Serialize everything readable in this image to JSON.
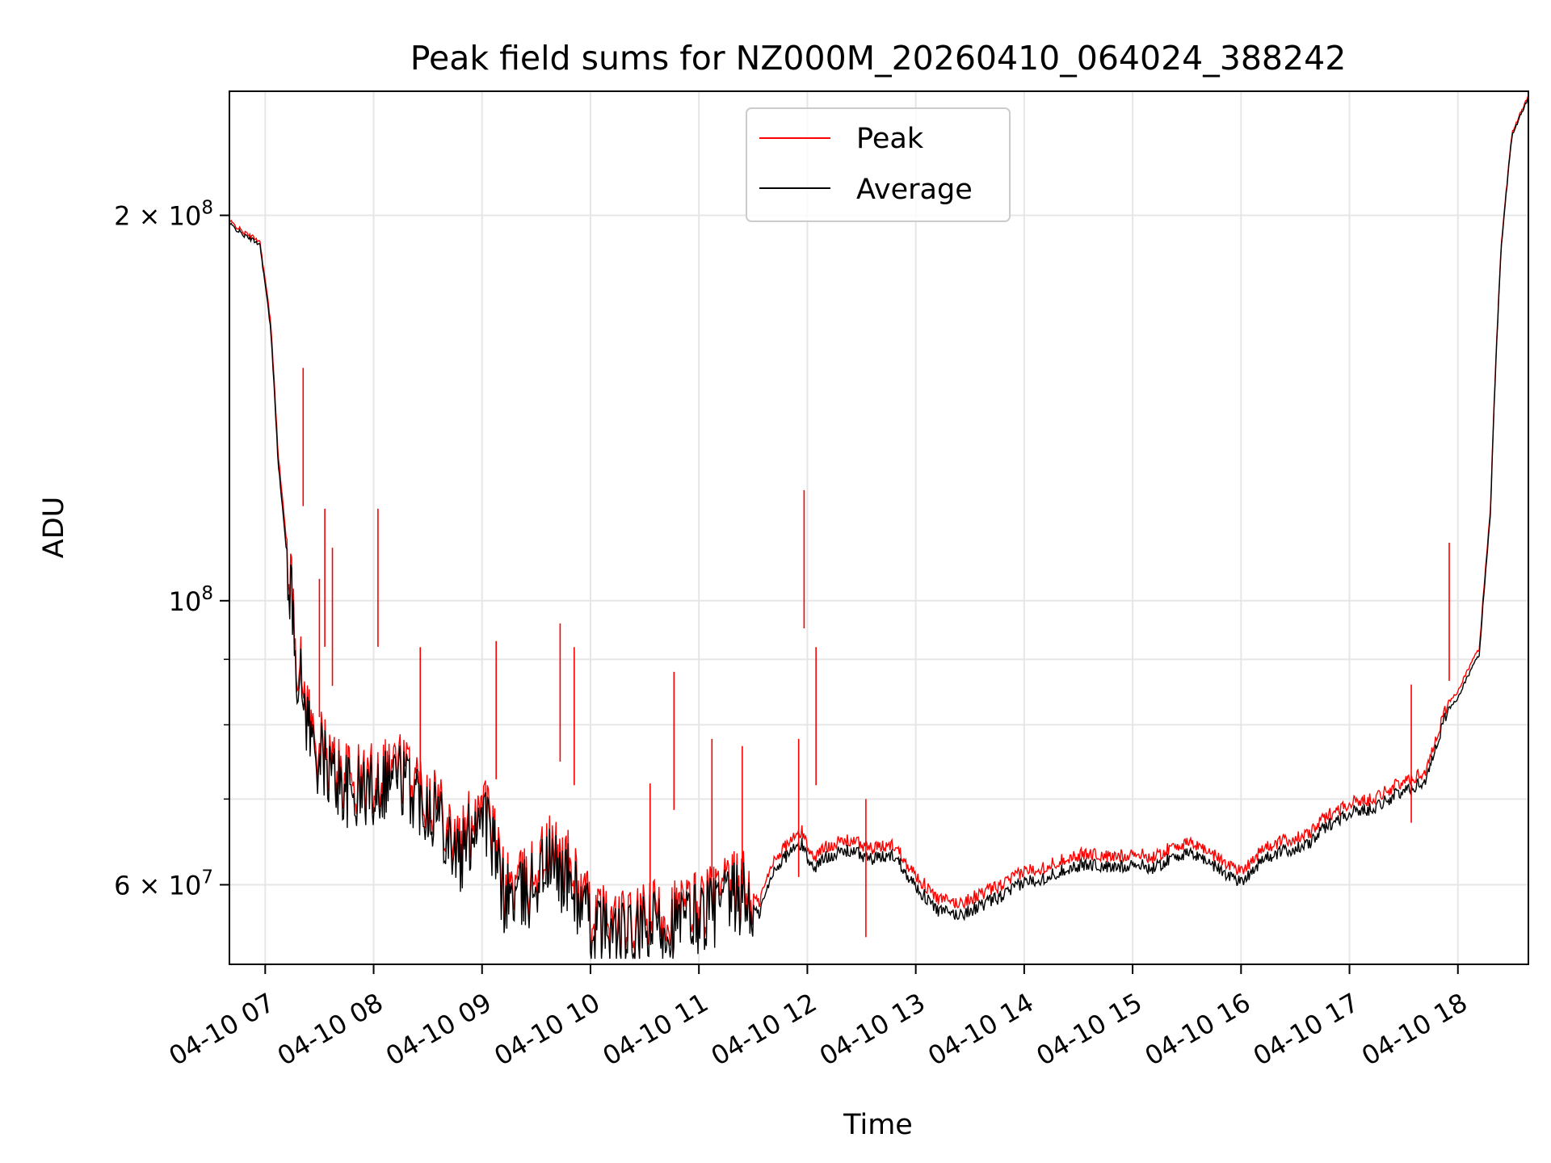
{
  "chart_data": {
    "type": "line",
    "title": "Peak field sums for NZ000M_20260410_064024_388242",
    "xlabel": "Time",
    "ylabel": "ADU",
    "yscale": "log",
    "ylim": [
      52000000,
      250000000
    ],
    "xlim_hours": [
      6.67,
      18.65
    ],
    "grid": true,
    "legend_position": "top-center",
    "x_ticks": [
      {
        "hour": 7,
        "label": "04-10 07"
      },
      {
        "hour": 8,
        "label": "04-10 08"
      },
      {
        "hour": 9,
        "label": "04-10 09"
      },
      {
        "hour": 10,
        "label": "04-10 10"
      },
      {
        "hour": 11,
        "label": "04-10 11"
      },
      {
        "hour": 12,
        "label": "04-10 12"
      },
      {
        "hour": 13,
        "label": "04-10 13"
      },
      {
        "hour": 14,
        "label": "04-10 14"
      },
      {
        "hour": 15,
        "label": "04-10 15"
      },
      {
        "hour": 16,
        "label": "04-10 16"
      },
      {
        "hour": 17,
        "label": "04-10 17"
      },
      {
        "hour": 18,
        "label": "04-10 18"
      }
    ],
    "y_major_ticks": [
      {
        "value": 60000000,
        "mantissa": "6",
        "label": "6 × 10^7"
      },
      {
        "value": 100000000,
        "mantissa": "",
        "label": "10^8"
      },
      {
        "value": 200000000,
        "mantissa": "2",
        "label": "2 × 10^8"
      }
    ],
    "y_minor_ticks": [
      70000000,
      80000000,
      90000000
    ],
    "series": [
      {
        "name": "Peak",
        "color": "#ff0000",
        "x_hours": [
          6.67,
          6.8,
          6.95,
          7.05,
          7.12,
          7.2,
          7.3,
          7.45,
          7.6,
          7.8,
          8.0,
          8.2,
          8.4,
          8.6,
          8.8,
          9.0,
          9.2,
          9.4,
          9.6,
          9.8,
          10.0,
          10.2,
          10.4,
          10.6,
          10.8,
          11.0,
          11.2,
          11.4,
          11.55,
          11.7,
          11.85,
          11.95,
          12.05,
          12.2,
          12.4,
          12.6,
          12.8,
          13.0,
          13.2,
          13.4,
          13.6,
          13.8,
          14.0,
          14.2,
          14.4,
          14.6,
          14.8,
          15.0,
          15.2,
          15.4,
          15.6,
          15.85,
          16.0,
          16.2,
          16.4,
          16.6,
          16.8,
          17.0,
          17.2,
          17.4,
          17.55,
          17.7,
          17.9,
          18.0,
          18.1,
          18.2,
          18.3,
          18.4,
          18.5,
          18.65
        ],
        "values": [
          198000000,
          194000000,
          191000000,
          165000000,
          130000000,
          110000000,
          90000000,
          78000000,
          75000000,
          72000000,
          73000000,
          75000000,
          72000000,
          70000000,
          64000000,
          71000000,
          60000000,
          60000000,
          64000000,
          62000000,
          57000000,
          56000000,
          55500000,
          57000000,
          57000000,
          58000000,
          59000000,
          60000000,
          58000000,
          63000000,
          65000000,
          66000000,
          63000000,
          64500000,
          65000000,
          64000000,
          64500000,
          61000000,
          58500000,
          58000000,
          59000000,
          60000000,
          61500000,
          62000000,
          63000000,
          63500000,
          63000000,
          63500000,
          63000000,
          64500000,
          64500000,
          62500000,
          61500000,
          64000000,
          65000000,
          65500000,
          68000000,
          69500000,
          70000000,
          71500000,
          72500000,
          73500000,
          83000000,
          85000000,
          88500000,
          92000000,
          118000000,
          190000000,
          232000000,
          248000000
        ]
      },
      {
        "name": "Average",
        "color": "#000000",
        "x_hours": [
          6.67,
          6.8,
          6.95,
          7.05,
          7.12,
          7.2,
          7.3,
          7.45,
          7.6,
          7.8,
          8.0,
          8.2,
          8.4,
          8.6,
          8.8,
          9.0,
          9.2,
          9.4,
          9.6,
          9.8,
          10.0,
          10.2,
          10.4,
          10.6,
          10.8,
          11.0,
          11.2,
          11.4,
          11.55,
          11.7,
          11.85,
          11.95,
          12.05,
          12.2,
          12.4,
          12.6,
          12.8,
          13.0,
          13.2,
          13.4,
          13.6,
          13.8,
          14.0,
          14.2,
          14.4,
          14.6,
          14.8,
          15.0,
          15.2,
          15.4,
          15.6,
          15.85,
          16.0,
          16.2,
          16.4,
          16.6,
          16.8,
          17.0,
          17.2,
          17.4,
          17.55,
          17.7,
          17.9,
          18.0,
          18.1,
          18.2,
          18.3,
          18.4,
          18.5,
          18.65
        ],
        "values": [
          197000000,
          193000000,
          190000000,
          163000000,
          128000000,
          108000000,
          88000000,
          76500000,
          73500000,
          70500000,
          71500000,
          73500000,
          70500000,
          68500000,
          62500000,
          69500000,
          58800000,
          58800000,
          62500000,
          60500000,
          55800000,
          54800000,
          54300000,
          55800000,
          55800000,
          56800000,
          57800000,
          58800000,
          56800000,
          61800000,
          63800000,
          64500000,
          61800000,
          63300000,
          63800000,
          62800000,
          63300000,
          59800000,
          57300000,
          56800000,
          57800000,
          58800000,
          60300000,
          60800000,
          61800000,
          62300000,
          61800000,
          62300000,
          61800000,
          63300000,
          63300000,
          61300000,
          60300000,
          62800000,
          63800000,
          64300000,
          66800000,
          68300000,
          68800000,
          70300000,
          71300000,
          72300000,
          82000000,
          84000000,
          87500000,
          91000000,
          117000000,
          189000000,
          231000000,
          247000000
        ]
      }
    ],
    "spikes": [
      {
        "hour": 7.35,
        "value": 152000000
      },
      {
        "hour": 7.5,
        "value": 104000000
      },
      {
        "hour": 7.55,
        "value": 118000000
      },
      {
        "hour": 7.62,
        "value": 110000000
      },
      {
        "hour": 8.04,
        "value": 118000000
      },
      {
        "hour": 8.43,
        "value": 92000000
      },
      {
        "hour": 9.13,
        "value": 93000000
      },
      {
        "hour": 9.72,
        "value": 96000000
      },
      {
        "hour": 9.85,
        "value": 92000000
      },
      {
        "hour": 10.55,
        "value": 72000000
      },
      {
        "hour": 10.77,
        "value": 88000000
      },
      {
        "hour": 11.12,
        "value": 78000000
      },
      {
        "hour": 11.4,
        "value": 77000000
      },
      {
        "hour": 11.92,
        "value": 78000000
      },
      {
        "hour": 11.97,
        "value": 122000000
      },
      {
        "hour": 12.08,
        "value": 92000000
      },
      {
        "hour": 12.54,
        "value": 70000000
      },
      {
        "hour": 17.57,
        "value": 86000000
      },
      {
        "hour": 17.92,
        "value": 111000000
      }
    ]
  }
}
